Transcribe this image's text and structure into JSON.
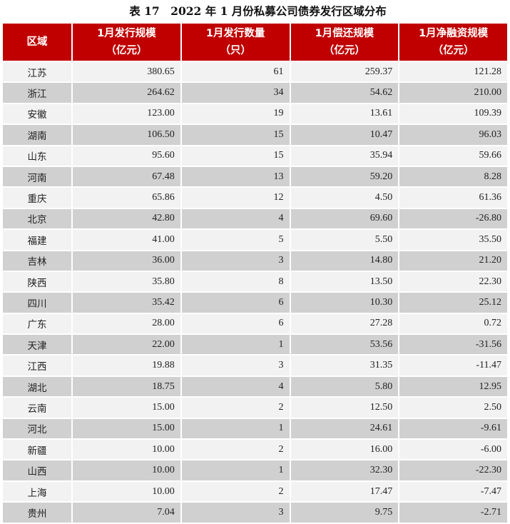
{
  "title": "表 17　2022 年 1 月份私募公司债券发行区域分布",
  "colors": {
    "header_bg": "#c00000",
    "row_light": "#f2f2f2",
    "row_dark": "#d0d0d0"
  },
  "headers": [
    {
      "line1": "区域",
      "line2": ""
    },
    {
      "line1": "1月发行规模",
      "line2": "（亿元）"
    },
    {
      "line1": "1月发行数量",
      "line2": "（只）"
    },
    {
      "line1": "1月偿还规模",
      "line2": "（亿元）"
    },
    {
      "line1": "1月净融资规模",
      "line2": "（亿元）"
    }
  ],
  "rows": [
    [
      "江苏",
      "380.65",
      "61",
      "259.37",
      "121.28"
    ],
    [
      "浙江",
      "264.62",
      "34",
      "54.62",
      "210.00"
    ],
    [
      "安徽",
      "123.00",
      "19",
      "13.61",
      "109.39"
    ],
    [
      "湖南",
      "106.50",
      "15",
      "10.47",
      "96.03"
    ],
    [
      "山东",
      "95.60",
      "15",
      "35.94",
      "59.66"
    ],
    [
      "河南",
      "67.48",
      "13",
      "59.20",
      "8.28"
    ],
    [
      "重庆",
      "65.86",
      "12",
      "4.50",
      "61.36"
    ],
    [
      "北京",
      "42.80",
      "4",
      "69.60",
      "-26.80"
    ],
    [
      "福建",
      "41.00",
      "5",
      "5.50",
      "35.50"
    ],
    [
      "吉林",
      "36.00",
      "3",
      "14.80",
      "21.20"
    ],
    [
      "陕西",
      "35.80",
      "8",
      "13.50",
      "22.30"
    ],
    [
      "四川",
      "35.42",
      "6",
      "10.30",
      "25.12"
    ],
    [
      "广东",
      "28.00",
      "6",
      "27.28",
      "0.72"
    ],
    [
      "天津",
      "22.00",
      "1",
      "53.56",
      "-31.56"
    ],
    [
      "江西",
      "19.88",
      "3",
      "31.35",
      "-11.47"
    ],
    [
      "湖北",
      "18.75",
      "4",
      "5.80",
      "12.95"
    ],
    [
      "云南",
      "15.00",
      "2",
      "12.50",
      "2.50"
    ],
    [
      "河北",
      "15.00",
      "1",
      "24.61",
      "-9.61"
    ],
    [
      "新疆",
      "10.00",
      "2",
      "16.00",
      "-6.00"
    ],
    [
      "山西",
      "10.00",
      "1",
      "32.30",
      "-22.30"
    ],
    [
      "上海",
      "10.00",
      "2",
      "17.47",
      "-7.47"
    ],
    [
      "贵州",
      "7.04",
      "3",
      "9.75",
      "-2.71"
    ]
  ]
}
